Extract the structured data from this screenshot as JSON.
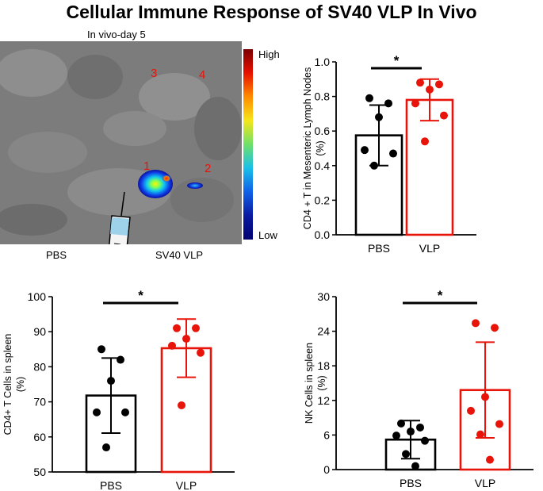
{
  "title": "Cellular Immune Response of  SV40 VLP In Vivo",
  "imaging": {
    "caption": "In vivo-day 5",
    "colorbar_high": "High",
    "colorbar_low": "Low",
    "label_pbs": "PBS",
    "label_vlp": "SV40  VLP",
    "mouse_numbers": [
      "3",
      "4",
      "1",
      "2"
    ],
    "number_color": "#e8140a"
  },
  "colors": {
    "pbs": "#000000",
    "vlp": "#e8140a"
  },
  "chart_data": [
    {
      "type": "bar",
      "ylabel": "CD4 + T in Mesenteric Lymph Nodes (%)",
      "ylabel_lines": [
        "CD4 + T in Mesenteric Lymph Nodes",
        "(%)"
      ],
      "categories": [
        "PBS",
        "VLP"
      ],
      "ylim": [
        0.0,
        1.0
      ],
      "yticks": [
        "0.0",
        "0.2",
        "0.4",
        "0.6",
        "0.8",
        "1.0"
      ],
      "ytick_values": [
        0.0,
        0.2,
        0.4,
        0.6,
        0.8,
        1.0
      ],
      "means": [
        0.575,
        0.78
      ],
      "sd": [
        0.175,
        0.12
      ],
      "points": [
        [
          0.79,
          0.76,
          0.68,
          0.49,
          0.47,
          0.4
        ],
        [
          0.88,
          0.87,
          0.84,
          0.76,
          0.69,
          0.54
        ]
      ],
      "significance": "*"
    },
    {
      "type": "bar",
      "ylabel": "CD4+ T Cells in spleen (%)",
      "ylabel_lines": [
        "CD4+ T Cells in spleen",
        "(%)"
      ],
      "categories": [
        "PBS",
        "VLP"
      ],
      "ylim": [
        50,
        100
      ],
      "yticks": [
        "50",
        "60",
        "70",
        "80",
        "90",
        "100"
      ],
      "ytick_values": [
        50,
        60,
        70,
        80,
        90,
        100
      ],
      "means": [
        71.8,
        85.3
      ],
      "sd": [
        10.7,
        8.3
      ],
      "points": [
        [
          85,
          82,
          76,
          67,
          67,
          57
        ],
        [
          91,
          91,
          88,
          86,
          84,
          69
        ]
      ],
      "significance": "*"
    },
    {
      "type": "bar",
      "ylabel": "NK Cells in spleen (%)",
      "ylabel_lines": [
        "NK Cells in spleen",
        "(%)"
      ],
      "categories": [
        "PBS",
        "VLP"
      ],
      "ylim": [
        0,
        30
      ],
      "yticks": [
        "0",
        "6",
        "12",
        "18",
        "24",
        "30"
      ],
      "ytick_values": [
        0,
        6,
        12,
        18,
        24,
        30
      ],
      "means": [
        5.2,
        13.8
      ],
      "sd": [
        3.3,
        8.3
      ],
      "points": [
        [
          8,
          7.3,
          6.6,
          5.9,
          5,
          2.7,
          0.6
        ],
        [
          25.4,
          24.6,
          12.6,
          10.2,
          7.9,
          6.1,
          1.7
        ]
      ],
      "significance": "*"
    }
  ]
}
